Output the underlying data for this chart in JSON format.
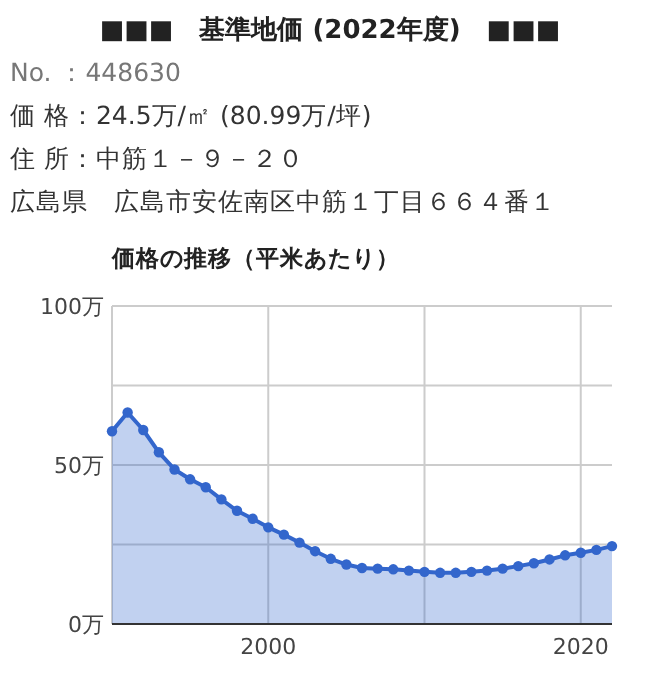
{
  "chart_data": {
    "type": "area",
    "title": "価格の推移（平米あたり）",
    "annotations": [
      "■■■　基準地価 (2022年度)　■■■",
      "No. ：448630",
      "価 格：24.5万/㎡ (80.99万/坪)",
      "住 所：中筋１－９－２０",
      "広島県　広島市安佐南区中筋１丁目６６４番１"
    ],
    "x": [
      1990,
      1991,
      1992,
      1993,
      1994,
      1995,
      1996,
      1997,
      1998,
      1999,
      2000,
      2001,
      2002,
      2003,
      2004,
      2005,
      2006,
      2007,
      2008,
      2009,
      2010,
      2011,
      2012,
      2013,
      2014,
      2015,
      2016,
      2017,
      2018,
      2019,
      2020,
      2021,
      2022
    ],
    "series": [
      {
        "color": "#3366cc",
        "values": [
          60.6,
          66.5,
          61,
          54,
          48.6,
          45.5,
          43,
          39.2,
          35.6,
          33.1,
          30.4,
          28.1,
          25.6,
          22.9,
          20.5,
          18.7,
          17.6,
          17.4,
          17.2,
          16.8,
          16.4,
          16.1,
          16.1,
          16.4,
          16.8,
          17.4,
          18.2,
          19.1,
          20.3,
          21.6,
          22.4,
          23.3,
          24.5
        ]
      }
    ],
    "xlim": [
      1990,
      2022
    ],
    "xticks": [
      2000,
      {
        "value": 2010,
        "label": null
      },
      2020
    ],
    "ylim": [
      0,
      100
    ],
    "yticks": [
      {
        "value": 0,
        "label": "0万"
      },
      {
        "value": 25,
        "label": null
      },
      {
        "value": 50,
        "label": "50万"
      },
      {
        "value": 75,
        "label": null
      },
      {
        "value": 100,
        "label": "100万"
      }
    ],
    "grid": true,
    "marker": "circle"
  }
}
